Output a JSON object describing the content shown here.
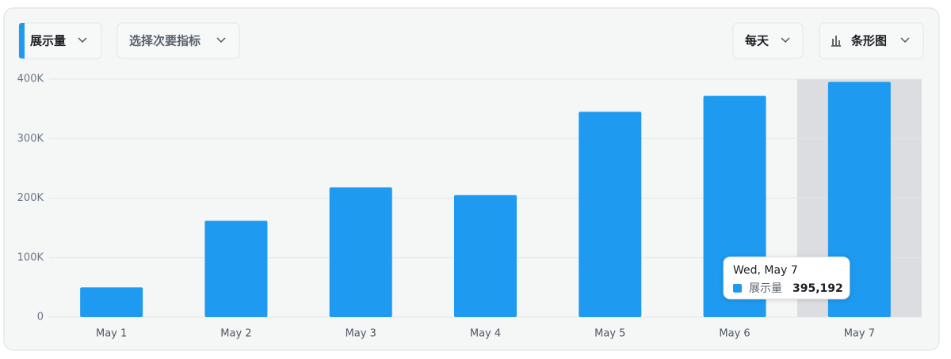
{
  "controls": {
    "primary_metric": "展示量",
    "secondary_metric": "选择次要指标",
    "interval": "每天",
    "chart_type": "条形图"
  },
  "chart_data": {
    "type": "bar",
    "categories": [
      "May 1",
      "May 2",
      "May 3",
      "May 4",
      "May 5",
      "May 6",
      "May 7"
    ],
    "series": [
      {
        "name": "展示量",
        "color": "#1e9af0",
        "values": [
          50000,
          162000,
          218000,
          205000,
          345000,
          372000,
          395192
        ]
      }
    ],
    "ylim": [
      0,
      400000
    ],
    "yticks": [
      0,
      {
        "value": 100000,
        "label": "100K"
      },
      {
        "value": 200000,
        "label": "200K"
      },
      {
        "value": 300000,
        "label": "300K"
      },
      {
        "value": 400000,
        "label": "400K"
      }
    ],
    "grid": true,
    "tooltip": {
      "title": "Wed, May 7",
      "value_label": "395,192"
    }
  }
}
